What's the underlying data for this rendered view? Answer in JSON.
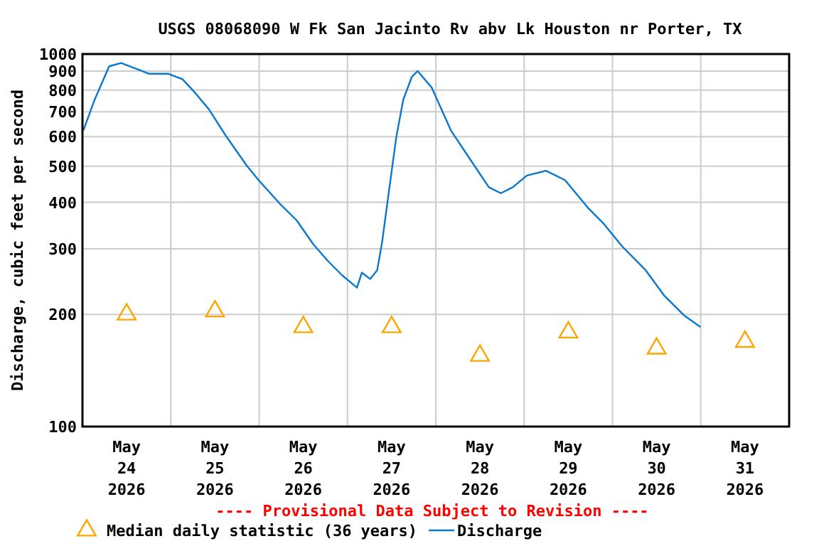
{
  "chart_data": {
    "type": "line",
    "title": "USGS 08068090 W Fk San Jacinto Rv abv Lk Houston nr Porter, TX",
    "ylabel": "Discharge, cubic feet per second",
    "log": true,
    "grid": true,
    "legend": "bottom",
    "annotations": [
      "---- Provisional Data Subject to Revision ----"
    ],
    "xlim": [
      "2026-05-24T00:00",
      "2026-06-01T00:00"
    ],
    "xticks": [
      {
        "value": "2026-05-24T00:00",
        "label": null
      },
      {
        "value": "2026-05-24T12:00",
        "label": "May 24 2026"
      },
      {
        "value": "2026-05-25T00:00",
        "label": null
      },
      {
        "value": "2026-05-25T12:00",
        "label": "May 25 2026"
      },
      {
        "value": "2026-05-26T00:00",
        "label": null
      },
      {
        "value": "2026-05-26T12:00",
        "label": "May 26 2026"
      },
      {
        "value": "2026-05-27T00:00",
        "label": null
      },
      {
        "value": "2026-05-27T12:00",
        "label": "May 27 2026"
      },
      {
        "value": "2026-05-28T00:00",
        "label": null
      },
      {
        "value": "2026-05-28T12:00",
        "label": "May 28 2026"
      },
      {
        "value": "2026-05-29T00:00",
        "label": null
      },
      {
        "value": "2026-05-29T12:00",
        "label": "May 29 2026"
      },
      {
        "value": "2026-05-30T00:00",
        "label": null
      },
      {
        "value": "2026-05-30T12:00",
        "label": "May 30 2026"
      },
      {
        "value": "2026-05-31T00:00",
        "label": null
      },
      {
        "value": "2026-05-31T12:00",
        "label": "May 31 2026"
      },
      {
        "value": "2026-06-01T00:00",
        "label": null
      }
    ],
    "ylim": [
      100,
      1000
    ],
    "yticks": [
      100,
      200,
      300,
      400,
      500,
      600,
      700,
      800,
      900,
      1000
    ],
    "series": [
      {
        "name": "Median daily statistic (36 years)",
        "type": "scatter",
        "marker": "triangle",
        "color": "#ffa500",
        "x": [
          "2026-05-24T12:00",
          "2026-05-25T12:00",
          "2026-05-26T12:00",
          "2026-05-27T12:00",
          "2026-05-28T12:00",
          "2026-05-29T12:00",
          "2026-05-30T12:00",
          "2026-05-31T12:00"
        ],
        "values": [
          200,
          204,
          185,
          185,
          155,
          179,
          162,
          169
        ]
      },
      {
        "name": "Discharge",
        "color": "#0b78d0",
        "x": [
          "2026-05-24T00:15",
          "2026-05-24T03:20",
          "2026-05-24T07:15",
          "2026-05-24T10:30",
          "2026-05-24T12:25",
          "2026-05-24T18:10",
          "2026-05-24T23:20",
          "2026-05-25T03:10",
          "2026-05-25T06:30",
          "2026-05-25T10:20",
          "2026-05-25T14:50",
          "2026-05-25T20:40",
          "2026-05-25T23:50",
          "2026-05-26T05:40",
          "2026-05-26T10:10",
          "2026-05-26T14:40",
          "2026-05-26T18:35",
          "2026-05-26T22:30",
          "2026-05-27T02:35",
          "2026-05-27T03:55",
          "2026-05-27T06:10",
          "2026-05-27T08:05",
          "2026-05-27T09:25",
          "2026-05-27T11:20",
          "2026-05-27T13:15",
          "2026-05-27T15:10",
          "2026-05-27T17:30",
          "2026-05-27T19:05",
          "2026-05-27T22:55",
          "2026-05-28T04:05",
          "2026-05-28T09:15",
          "2026-05-28T14:25",
          "2026-05-28T17:40",
          "2026-05-28T20:55",
          "2026-05-29T00:45",
          "2026-05-29T05:55",
          "2026-05-29T11:05",
          "2026-05-29T17:30",
          "2026-05-29T21:25",
          "2026-05-30T02:35",
          "2026-05-30T09:00",
          "2026-05-30T14:10",
          "2026-05-30T19:25",
          "2026-05-30T23:55"
        ],
        "values": [
          624,
          755,
          927,
          946,
          931,
          885,
          885,
          856,
          789,
          711,
          606,
          501,
          459,
          396,
          358,
          309,
          279,
          255,
          236,
          259,
          249,
          263,
          313,
          433,
          597,
          755,
          869,
          900,
          812,
          624,
          523,
          439,
          423,
          439,
          472,
          486,
          459,
          385,
          352,
          305,
          263,
          224,
          199,
          185
        ]
      }
    ]
  }
}
